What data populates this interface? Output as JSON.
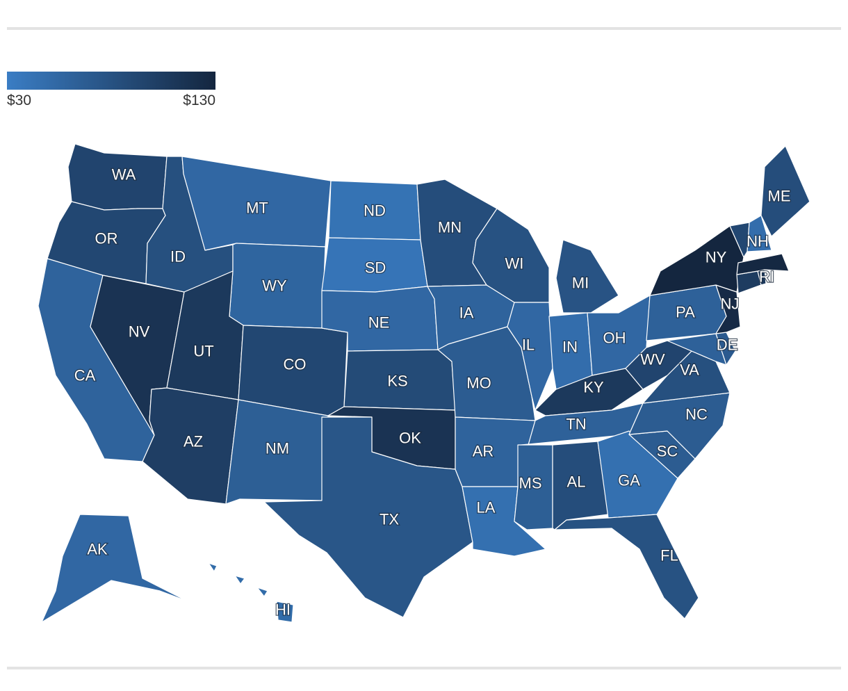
{
  "legend": {
    "min_label": "$30",
    "max_label": "$130",
    "min_color": "#3a7dc4",
    "max_color": "#14263f",
    "min_value": 30,
    "max_value": 130
  },
  "map_data": {
    "type": "choropleth",
    "region": "United States",
    "level_units": "USD",
    "states": [
      {
        "code": "WA",
        "level": 95
      },
      {
        "code": "OR",
        "level": 92
      },
      {
        "code": "CA",
        "level": 60
      },
      {
        "code": "NV",
        "level": 115
      },
      {
        "code": "ID",
        "level": 82
      },
      {
        "code": "MT",
        "level": 55
      },
      {
        "code": "WY",
        "level": 58
      },
      {
        "code": "UT",
        "level": 108
      },
      {
        "code": "CO",
        "level": 92
      },
      {
        "code": "AZ",
        "level": 102
      },
      {
        "code": "NM",
        "level": 65
      },
      {
        "code": "ND",
        "level": 42
      },
      {
        "code": "SD",
        "level": 40
      },
      {
        "code": "NE",
        "level": 55
      },
      {
        "code": "KS",
        "level": 88
      },
      {
        "code": "OK",
        "level": 115
      },
      {
        "code": "TX",
        "level": 75
      },
      {
        "code": "MN",
        "level": 85
      },
      {
        "code": "IA",
        "level": 60
      },
      {
        "code": "MO",
        "level": 68
      },
      {
        "code": "AR",
        "level": 60
      },
      {
        "code": "LA",
        "level": 45
      },
      {
        "code": "WI",
        "level": 80
      },
      {
        "code": "IL",
        "level": 55
      },
      {
        "code": "MI",
        "level": 78
      },
      {
        "code": "IN",
        "level": 48
      },
      {
        "code": "OH",
        "level": 55
      },
      {
        "code": "KY",
        "level": 108
      },
      {
        "code": "TN",
        "level": 62
      },
      {
        "code": "MS",
        "level": 65
      },
      {
        "code": "AL",
        "level": 85
      },
      {
        "code": "GA",
        "level": 45
      },
      {
        "code": "FL",
        "level": 80
      },
      {
        "code": "SC",
        "level": 68
      },
      {
        "code": "NC",
        "level": 68
      },
      {
        "code": "VA",
        "level": 82
      },
      {
        "code": "WV",
        "level": 95
      },
      {
        "code": "PA",
        "level": 62
      },
      {
        "code": "NY",
        "level": 130
      },
      {
        "code": "VT",
        "level": 92
      },
      {
        "code": "NH",
        "level": 48
      },
      {
        "code": "ME",
        "level": 85
      },
      {
        "code": "MA",
        "level": 128
      },
      {
        "code": "RI",
        "level": 108
      },
      {
        "code": "CT",
        "level": 105
      },
      {
        "code": "NJ",
        "level": 125
      },
      {
        "code": "DE",
        "level": 70
      },
      {
        "code": "MD",
        "level": 62
      },
      {
        "code": "AK",
        "level": 55
      },
      {
        "code": "HI",
        "level": 50
      }
    ],
    "labels": [
      "WA",
      "OR",
      "CA",
      "NV",
      "ID",
      "MT",
      "WY",
      "UT",
      "CO",
      "AZ",
      "NM",
      "ND",
      "SD",
      "NE",
      "KS",
      "OK",
      "TX",
      "MN",
      "IA",
      "MO",
      "AR",
      "LA",
      "WI",
      "IL",
      "MI",
      "IN",
      "OH",
      "KY",
      "TN",
      "MS",
      "AL",
      "GA",
      "FL",
      "SC",
      "NC",
      "VA",
      "WV",
      "PA",
      "NY",
      "NH",
      "ME",
      "RI",
      "NJ",
      "DE",
      "AK",
      "HI"
    ]
  }
}
